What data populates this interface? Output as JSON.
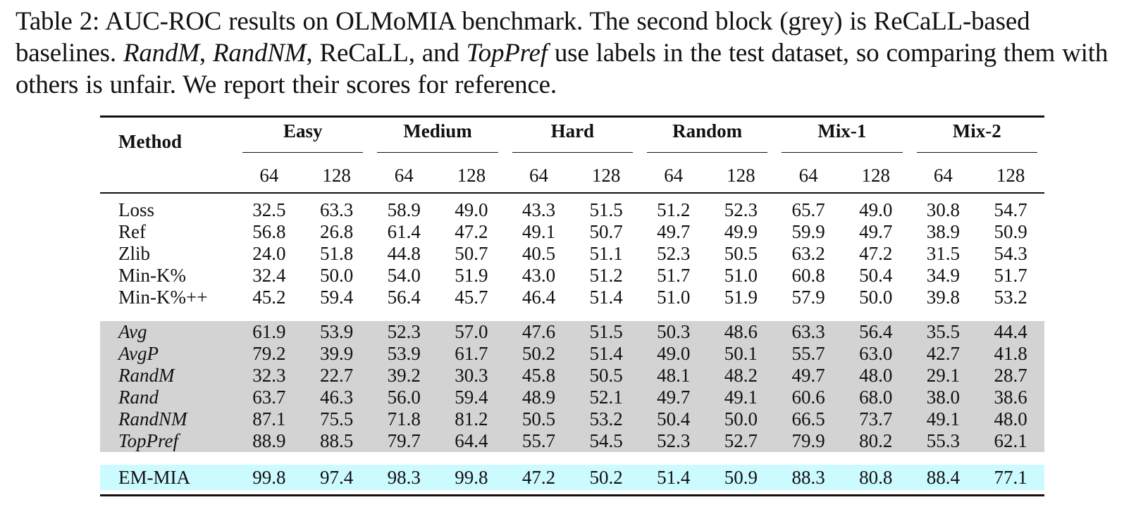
{
  "caption": {
    "label": "Table 2:",
    "s1": " AUC-ROC results on OLMoMIA benchmark.  The second block (grey) is ReCaLL-based baselines. ",
    "e1": "RandM",
    "s2": ", ",
    "e2": "RandNM",
    "s3": ", ReCaLL, and ",
    "e3": "TopPref",
    "s4": " use labels in the test dataset, so comparing them with others is unfair. We report their scores for reference."
  },
  "table": {
    "method_header": "Method",
    "groups": [
      "Easy",
      "Medium",
      "Hard",
      "Random",
      "Mix-1",
      "Mix-2"
    ],
    "subheaders": [
      "64",
      "128",
      "64",
      "128",
      "64",
      "128",
      "64",
      "128",
      "64",
      "128",
      "64",
      "128"
    ],
    "baseline_rows": [
      {
        "name": "Loss",
        "values": [
          "32.5",
          "63.3",
          "58.9",
          "49.0",
          "43.3",
          "51.5",
          "51.2",
          "52.3",
          "65.7",
          "49.0",
          "30.8",
          "54.7"
        ]
      },
      {
        "name": "Ref",
        "values": [
          "56.8",
          "26.8",
          "61.4",
          "47.2",
          "49.1",
          "50.7",
          "49.7",
          "49.9",
          "59.9",
          "49.7",
          "38.9",
          "50.9"
        ]
      },
      {
        "name": "Zlib",
        "values": [
          "24.0",
          "51.8",
          "44.8",
          "50.7",
          "40.5",
          "51.1",
          "52.3",
          "50.5",
          "63.2",
          "47.2",
          "31.5",
          "54.3"
        ]
      },
      {
        "name": "Min-K%",
        "values": [
          "32.4",
          "50.0",
          "54.0",
          "51.9",
          "43.0",
          "51.2",
          "51.7",
          "51.0",
          "60.8",
          "50.4",
          "34.9",
          "51.7"
        ]
      },
      {
        "name": "Min-K%++",
        "values": [
          "45.2",
          "59.4",
          "56.4",
          "45.7",
          "46.4",
          "51.4",
          "51.0",
          "51.9",
          "57.9",
          "50.0",
          "39.8",
          "53.2"
        ]
      }
    ],
    "recall_rows": [
      {
        "name": "Avg",
        "values": [
          "61.9",
          "53.9",
          "52.3",
          "57.0",
          "47.6",
          "51.5",
          "50.3",
          "48.6",
          "63.3",
          "56.4",
          "35.5",
          "44.4"
        ]
      },
      {
        "name": "AvgP",
        "values": [
          "79.2",
          "39.9",
          "53.9",
          "61.7",
          "50.2",
          "51.4",
          "49.0",
          "50.1",
          "55.7",
          "63.0",
          "42.7",
          "41.8"
        ]
      },
      {
        "name": "RandM",
        "values": [
          "32.3",
          "22.7",
          "39.2",
          "30.3",
          "45.8",
          "50.5",
          "48.1",
          "48.2",
          "49.7",
          "48.0",
          "29.1",
          "28.7"
        ]
      },
      {
        "name": "Rand",
        "values": [
          "63.7",
          "46.3",
          "56.0",
          "59.4",
          "48.9",
          "52.1",
          "49.7",
          "49.1",
          "60.6",
          "68.0",
          "38.0",
          "38.6"
        ]
      },
      {
        "name": "RandNM",
        "values": [
          "87.1",
          "75.5",
          "71.8",
          "81.2",
          "50.5",
          "53.2",
          "50.4",
          "50.0",
          "66.5",
          "73.7",
          "49.1",
          "48.0"
        ]
      },
      {
        "name": "TopPref",
        "values": [
          "88.9",
          "88.5",
          "79.7",
          "64.4",
          "55.7",
          "54.5",
          "52.3",
          "52.7",
          "79.9",
          "80.2",
          "55.3",
          "62.1"
        ]
      }
    ],
    "ours_row": {
      "name": "EM-MIA",
      "values": [
        "99.8",
        "97.4",
        "98.3",
        "99.8",
        "47.2",
        "50.2",
        "51.4",
        "50.9",
        "88.3",
        "80.8",
        "88.4",
        "77.1"
      ]
    },
    "colors": {
      "grey_block": "#d3d3d3",
      "ours_highlight": "#ccfbff"
    }
  }
}
